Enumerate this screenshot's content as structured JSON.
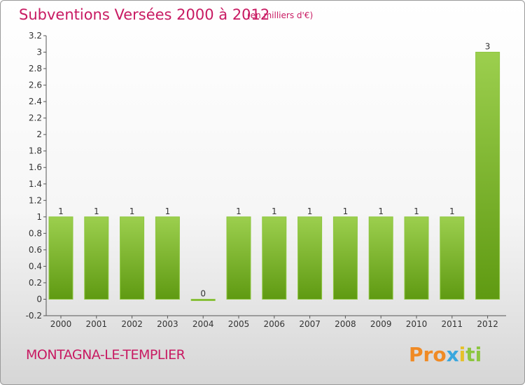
{
  "header": {
    "title": "Subventions Versées 2000 à 2012",
    "subtitle": "(en milliers d'€)"
  },
  "footer": {
    "commune": "MONTAGNA-LE-TEMPLIER",
    "logo_parts": [
      "Pro",
      "x",
      "i",
      "ti"
    ]
  },
  "colors": {
    "accent": "#c81a62",
    "bar_top": "#9ccf4e",
    "bar_bottom": "#5f9a12",
    "logo_orange": "#f08a24",
    "logo_blue": "#3aa7de",
    "logo_yellow": "#e6c02a",
    "logo_green": "#8cc63f"
  },
  "chart_data": {
    "type": "bar",
    "title": "Subventions Versées 2000 à 2012",
    "subtitle": "(en milliers d'€)",
    "xlabel": "",
    "ylabel": "",
    "categories": [
      "2000",
      "2001",
      "2002",
      "2003",
      "2004",
      "2005",
      "2006",
      "2007",
      "2008",
      "2009",
      "2010",
      "2011",
      "2012"
    ],
    "values": [
      1,
      1,
      1,
      1,
      0,
      1,
      1,
      1,
      1,
      1,
      1,
      1,
      3
    ],
    "data_labels": [
      "1",
      "1",
      "1",
      "1",
      "0",
      "1",
      "1",
      "1",
      "1",
      "1",
      "1",
      "1",
      "3"
    ],
    "ylim": [
      -0.2,
      3.2
    ],
    "yticks": [
      -0.2,
      0,
      0.2,
      0.4,
      0.6,
      0.8,
      1,
      1.2,
      1.4,
      1.6,
      1.8,
      2,
      2.2,
      2.4,
      2.6,
      2.8,
      3,
      3.2
    ],
    "ytick_labels": [
      "-0.2",
      "0",
      "0.2",
      "0.4",
      "0.6",
      "0.8",
      "1",
      "1.2",
      "1.4",
      "1.6",
      "1.8",
      "2",
      "2.2",
      "2.4",
      "2.6",
      "2.8",
      "3",
      "3.2"
    ],
    "grid": false,
    "legend": "none"
  }
}
